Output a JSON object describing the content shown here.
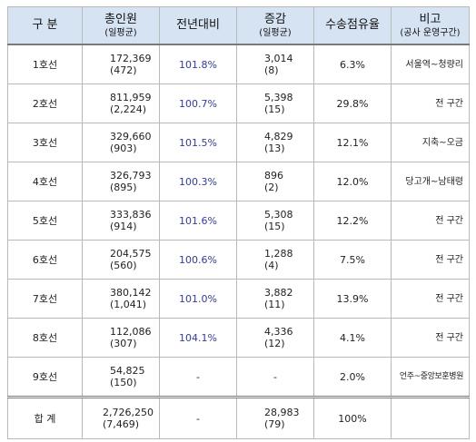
{
  "headers": {
    "division": "구 분",
    "total_riders": "총인원",
    "total_riders_sub": "(일평균)",
    "yoy": "전년대비",
    "change": "증감",
    "change_sub": "(일평균)",
    "share": "수송점유율",
    "remarks": "비고",
    "remarks_sub": "(공사 운영구간)"
  },
  "rows": [
    {
      "line": "1호선",
      "total": "172,369",
      "total_daily": "(472)",
      "yoy": "101.8%",
      "change": "3,014",
      "change_daily": "(8)",
      "share": "6.3%",
      "note": "서울역~청량리"
    },
    {
      "line": "2호선",
      "total": "811,959",
      "total_daily": "(2,224)",
      "yoy": "100.7%",
      "change": "5,398",
      "change_daily": "(15)",
      "share": "29.8%",
      "note": "전 구간"
    },
    {
      "line": "3호선",
      "total": "329,660",
      "total_daily": "(903)",
      "yoy": "101.5%",
      "change": "4,829",
      "change_daily": "(13)",
      "share": "12.1%",
      "note": "지축~오금"
    },
    {
      "line": "4호선",
      "total": "326,793",
      "total_daily": "(895)",
      "yoy": "100.3%",
      "change": "896",
      "change_daily": "(2)",
      "share": "12.0%",
      "note": "당고개~남태령"
    },
    {
      "line": "5호선",
      "total": "333,836",
      "total_daily": "(914)",
      "yoy": "101.6%",
      "change": "5,308",
      "change_daily": "(15)",
      "share": "12.2%",
      "note": "전 구간"
    },
    {
      "line": "6호선",
      "total": "204,575",
      "total_daily": "(560)",
      "yoy": "100.6%",
      "change": "1,288",
      "change_daily": "(4)",
      "share": "7.5%",
      "note": "전 구간"
    },
    {
      "line": "7호선",
      "total": "380,142",
      "total_daily": "(1,041)",
      "yoy": "101.0%",
      "change": "3,882",
      "change_daily": "(11)",
      "share": "13.9%",
      "note": "전 구간"
    },
    {
      "line": "8호선",
      "total": "112,086",
      "total_daily": "(307)",
      "yoy": "104.1%",
      "change": "4,336",
      "change_daily": "(12)",
      "share": "4.1%",
      "note": "전 구간"
    },
    {
      "line": "9호선",
      "total": "54,825",
      "total_daily": "(150)",
      "yoy": "-",
      "change": "-",
      "change_daily": "",
      "share": "2.0%",
      "note": "언주~중앙보훈병원"
    }
  ],
  "total": {
    "label": "합 계",
    "total": "2,726,250",
    "total_daily": "(7,469)",
    "yoy": "-",
    "change": "28,983",
    "change_daily": "(79)",
    "share": "100%",
    "note": ""
  },
  "colors": {
    "header_bg": "#d6e3f2",
    "yoy_text": "#2f3ba8",
    "border": "#b9b9b9"
  }
}
